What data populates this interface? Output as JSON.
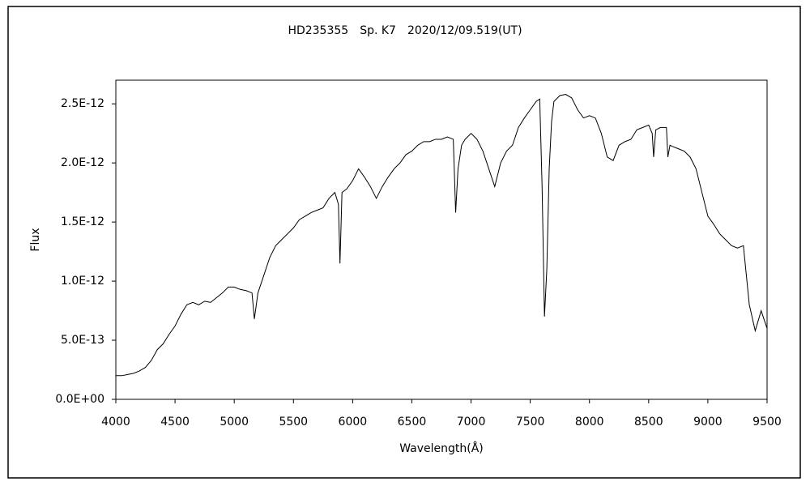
{
  "chart_data": {
    "type": "line",
    "title": "HD235355　Sp. K7　2020/12/09.519(UT)",
    "x_label": "Wavelength(Å)",
    "y_label": "Flux",
    "color": "#000000",
    "grid": false,
    "xlim": [
      4000,
      9500
    ],
    "xticks": [
      4000,
      4500,
      5000,
      5500,
      6000,
      6500,
      7000,
      7500,
      8000,
      8500,
      9000,
      9500
    ],
    "ylim": [
      0,
      2.7e-12
    ],
    "yticks": [
      {
        "value": 0,
        "label": "0.0E+00"
      },
      {
        "value": 5e-13,
        "label": "5.0E-13"
      },
      {
        "value": 1e-12,
        "label": "1.0E-12"
      },
      {
        "value": 1.5e-12,
        "label": "1.5E-12"
      },
      {
        "value": 2e-12,
        "label": "2.0E-12"
      },
      {
        "value": 2.5e-12,
        "label": "2.5E-12"
      }
    ],
    "x": [
      4000,
      4050,
      4100,
      4150,
      4200,
      4250,
      4300,
      4350,
      4400,
      4450,
      4500,
      4550,
      4600,
      4650,
      4700,
      4750,
      4800,
      4850,
      4900,
      4950,
      5000,
      5050,
      5100,
      5150,
      5170,
      5200,
      5250,
      5300,
      5350,
      5400,
      5450,
      5500,
      5550,
      5600,
      5650,
      5700,
      5750,
      5800,
      5850,
      5880,
      5893,
      5910,
      5950,
      6000,
      6050,
      6100,
      6150,
      6200,
      6250,
      6300,
      6350,
      6400,
      6450,
      6500,
      6550,
      6600,
      6650,
      6700,
      6750,
      6800,
      6850,
      6870,
      6890,
      6920,
      6950,
      7000,
      7050,
      7100,
      7150,
      7200,
      7250,
      7300,
      7350,
      7400,
      7450,
      7500,
      7550,
      7580,
      7600,
      7620,
      7640,
      7660,
      7680,
      7700,
      7750,
      7800,
      7850,
      7900,
      7950,
      8000,
      8050,
      8100,
      8150,
      8200,
      8250,
      8300,
      8350,
      8400,
      8450,
      8500,
      8530,
      8542,
      8560,
      8600,
      8650,
      8662,
      8680,
      8700,
      8750,
      8800,
      8850,
      8900,
      8950,
      9000,
      9050,
      9100,
      9150,
      9200,
      9250,
      9300,
      9350,
      9400,
      9450,
      9500
    ],
    "series": [
      {
        "values": [
          2e-13,
          2e-13,
          2.1e-13,
          2.2e-13,
          2.4e-13,
          2.7e-13,
          3.3e-13,
          4.2e-13,
          4.7e-13,
          5.5e-13,
          6.2e-13,
          7.2e-13,
          8e-13,
          8.2e-13,
          8e-13,
          8.3e-13,
          8.2e-13,
          8.6e-13,
          9e-13,
          9.5e-13,
          9.5e-13,
          9.3e-13,
          9.2e-13,
          9e-13,
          6.8e-13,
          9e-13,
          1.05e-12,
          1.2e-12,
          1.3e-12,
          1.35e-12,
          1.4e-12,
          1.45e-12,
          1.52e-12,
          1.55e-12,
          1.58e-12,
          1.6e-12,
          1.62e-12,
          1.7e-12,
          1.75e-12,
          1.65e-12,
          1.15e-12,
          1.75e-12,
          1.78e-12,
          1.85e-12,
          1.95e-12,
          1.88e-12,
          1.8e-12,
          1.7e-12,
          1.8e-12,
          1.88e-12,
          1.95e-12,
          2e-12,
          2.07e-12,
          2.1e-12,
          2.15e-12,
          2.18e-12,
          2.18e-12,
          2.2e-12,
          2.2e-12,
          2.22e-12,
          2.2e-12,
          1.58e-12,
          1.95e-12,
          2.15e-12,
          2.2e-12,
          2.25e-12,
          2.2e-12,
          2.1e-12,
          1.95e-12,
          1.8e-12,
          2e-12,
          2.1e-12,
          2.15e-12,
          2.3e-12,
          2.38e-12,
          2.45e-12,
          2.52e-12,
          2.54e-12,
          1.8e-12,
          7e-13,
          1.1e-12,
          1.95e-12,
          2.35e-12,
          2.52e-12,
          2.57e-12,
          2.58e-12,
          2.55e-12,
          2.45e-12,
          2.38e-12,
          2.4e-12,
          2.38e-12,
          2.25e-12,
          2.05e-12,
          2.02e-12,
          2.15e-12,
          2.18e-12,
          2.2e-12,
          2.28e-12,
          2.3e-12,
          2.32e-12,
          2.25e-12,
          2.05e-12,
          2.28e-12,
          2.3e-12,
          2.3e-12,
          2.05e-12,
          2.15e-12,
          2.14e-12,
          2.12e-12,
          2.1e-12,
          2.05e-12,
          1.95e-12,
          1.75e-12,
          1.55e-12,
          1.48e-12,
          1.4e-12,
          1.35e-12,
          1.3e-12,
          1.28e-12,
          1.3e-12,
          8e-13,
          5.8e-13,
          7.5e-13,
          6e-13
        ]
      }
    ]
  }
}
